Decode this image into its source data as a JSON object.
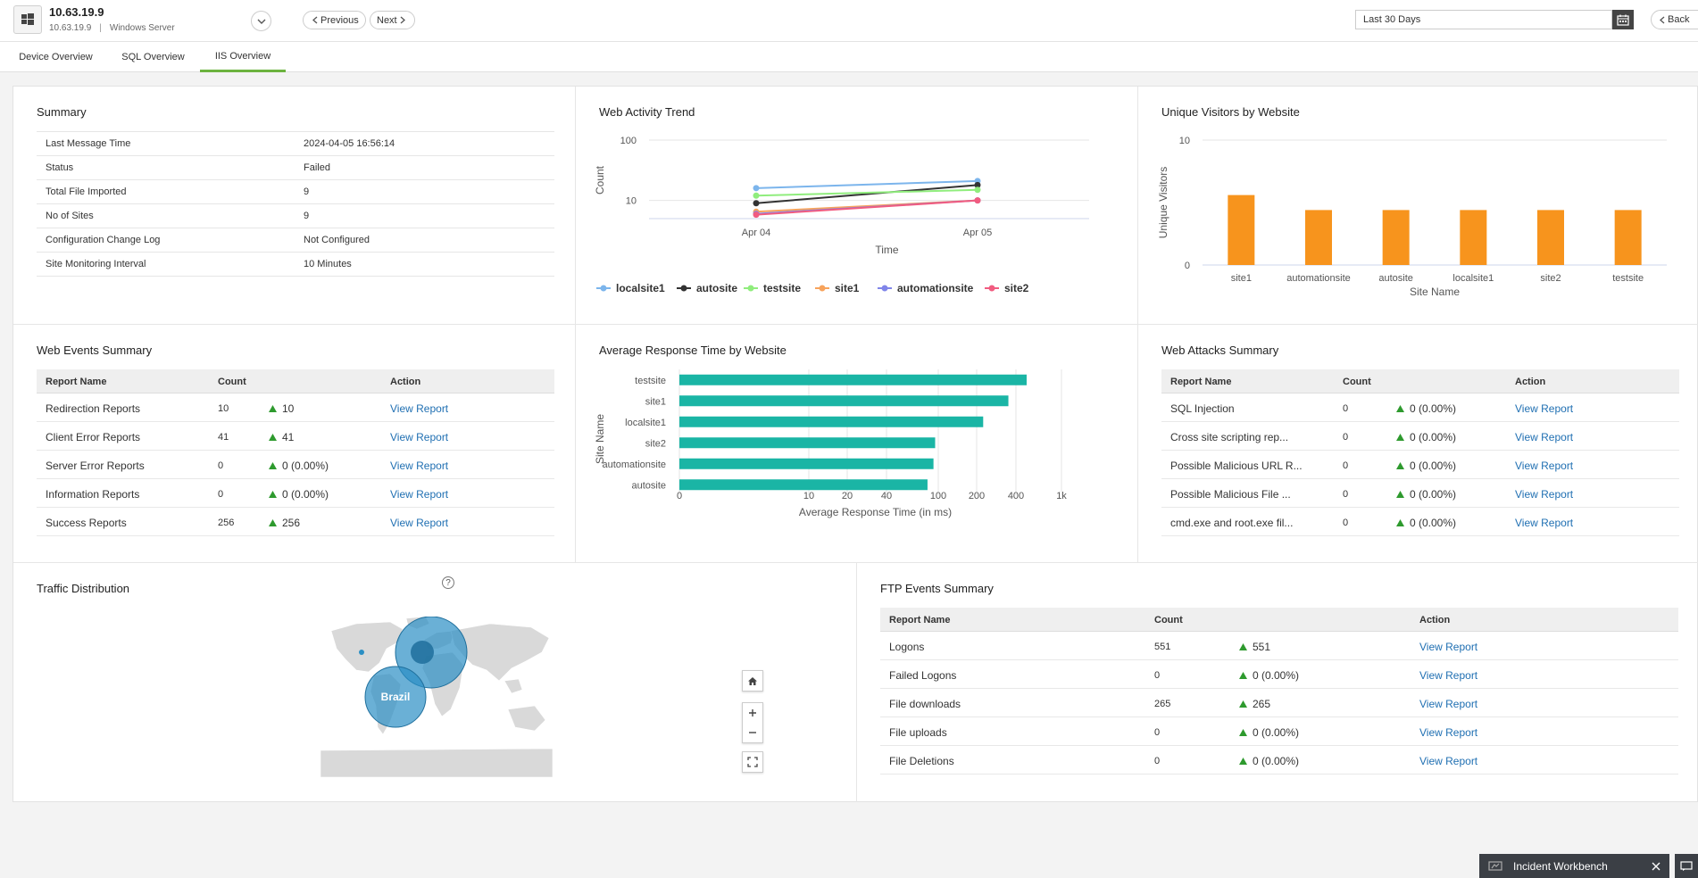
{
  "header": {
    "device_title": "10.63.19.9",
    "device_ip": "10.63.19.9",
    "device_os": "Windows Server",
    "prev_label": "Previous",
    "next_label": "Next",
    "date_range": "Last 30 Days",
    "back_label": "Back"
  },
  "tabs": [
    {
      "label": "Device Overview"
    },
    {
      "label": "SQL Overview"
    },
    {
      "label": "IIS Overview"
    }
  ],
  "active_tab": "IIS Overview",
  "summary": {
    "title": "Summary",
    "rows": [
      {
        "key": "Last Message Time",
        "value": "2024-04-05 16:56:14"
      },
      {
        "key": "Status",
        "value": "Failed"
      },
      {
        "key": "Total File Imported",
        "value": "9"
      },
      {
        "key": "No of Sites",
        "value": "9"
      },
      {
        "key": "Configuration Change Log",
        "value": "Not Configured"
      },
      {
        "key": "Site Monitoring Interval",
        "value": "10 Minutes"
      }
    ]
  },
  "web_activity": {
    "title": "Web Activity Trend",
    "chart_data": {
      "type": "line",
      "title": "Web Activity Trend",
      "xlabel": "Time",
      "ylabel": "Count",
      "yscale": "log",
      "ylim": [
        5,
        100
      ],
      "yticks": [
        "100",
        "10"
      ],
      "categories": [
        "Apr 04",
        "Apr 05"
      ],
      "series": [
        {
          "name": "localsite1",
          "color": "#7cb5ec",
          "values": [
            16,
            21
          ]
        },
        {
          "name": "autosite",
          "color": "#333333",
          "values": [
            9,
            18
          ]
        },
        {
          "name": "testsite",
          "color": "#90ed7d",
          "values": [
            12,
            15
          ]
        },
        {
          "name": "site1",
          "color": "#f7a35c",
          "values": [
            6.5,
            10
          ]
        },
        {
          "name": "automationsite",
          "color": "#8085e9",
          "values": [
            6,
            10
          ]
        },
        {
          "name": "site2",
          "color": "#f15c80",
          "values": [
            5.8,
            10
          ]
        }
      ]
    }
  },
  "unique_visitors": {
    "title": "Unique Visitors by Website",
    "chart_data": {
      "type": "bar",
      "title": "Unique Visitors by Website",
      "xlabel": "Site Name",
      "ylabel": "Unique Visitors",
      "ylim": [
        0,
        10
      ],
      "yticks": [
        "10",
        "0"
      ],
      "color": "#f7941d",
      "categories": [
        "site1",
        "automationsite",
        "autosite",
        "localsite1",
        "site2",
        "testsite"
      ],
      "values": [
        5.6,
        4.4,
        4.4,
        4.4,
        4.4,
        4.4
      ]
    }
  },
  "web_events": {
    "title": "Web Events Summary",
    "headers": {
      "name": "Report Name",
      "count": "Count",
      "action": "Action"
    },
    "rows": [
      {
        "name": "Redirection Reports",
        "count": "10",
        "trend": "10",
        "action": "View Report"
      },
      {
        "name": "Client Error Reports",
        "count": "41",
        "trend": "41",
        "action": "View Report"
      },
      {
        "name": "Server Error Reports",
        "count": "0",
        "trend": "0 (0.00%)",
        "action": "View Report"
      },
      {
        "name": "Information Reports",
        "count": "0",
        "trend": "0 (0.00%)",
        "action": "View Report"
      },
      {
        "name": "Success Reports",
        "count": "256",
        "trend": "256",
        "action": "View Report"
      }
    ]
  },
  "avg_response": {
    "title": "Average Response Time by Website",
    "chart_data": {
      "type": "bar",
      "orientation": "horizontal",
      "title": "Average Response Time by Website",
      "xlabel": "Average Response Time (in ms)",
      "ylabel": "Site Name",
      "xscale": "log",
      "color": "#1ab5a5",
      "xticks": [
        "0",
        "10",
        "20",
        "40",
        "100",
        "200",
        "400",
        "1k"
      ],
      "categories": [
        "testsite",
        "site1",
        "localsite1",
        "site2",
        "automationsite",
        "autosite"
      ],
      "values": [
        530,
        380,
        240,
        100,
        97,
        87
      ]
    }
  },
  "web_attacks": {
    "title": "Web Attacks Summary",
    "headers": {
      "name": "Report Name",
      "count": "Count",
      "action": "Action"
    },
    "rows": [
      {
        "name": "SQL Injection",
        "count": "0",
        "trend": "0 (0.00%)",
        "action": "View Report"
      },
      {
        "name": "Cross site scripting rep...",
        "count": "0",
        "trend": "0 (0.00%)",
        "action": "View Report"
      },
      {
        "name": "Possible Malicious URL R...",
        "count": "0",
        "trend": "0 (0.00%)",
        "action": "View Report"
      },
      {
        "name": "Possible Malicious File ...",
        "count": "0",
        "trend": "0 (0.00%)",
        "action": "View Report"
      },
      {
        "name": "cmd.exe and root.exe fil...",
        "count": "0",
        "trend": "0 (0.00%)",
        "action": "View Report"
      }
    ]
  },
  "traffic": {
    "title": "Traffic Distribution",
    "help_symbol": "?",
    "bubble_label": "Brazil"
  },
  "ftp_events": {
    "title": "FTP Events Summary",
    "headers": {
      "name": "Report Name",
      "count": "Count",
      "action": "Action"
    },
    "rows": [
      {
        "name": "Logons",
        "count": "551",
        "trend": "551",
        "action": "View Report"
      },
      {
        "name": "Failed Logons",
        "count": "0",
        "trend": "0 (0.00%)",
        "action": "View Report"
      },
      {
        "name": "File downloads",
        "count": "265",
        "trend": "265",
        "action": "View Report"
      },
      {
        "name": "File uploads",
        "count": "0",
        "trend": "0 (0.00%)",
        "action": "View Report"
      },
      {
        "name": "File Deletions",
        "count": "0",
        "trend": "0 (0.00%)",
        "action": "View Report"
      }
    ]
  },
  "footer": {
    "incident_workbench": "Incident Workbench"
  },
  "colors": {
    "accent_green": "#6cb33f",
    "link_blue": "#1f6fb2",
    "trend_green": "#2e9a2e"
  }
}
